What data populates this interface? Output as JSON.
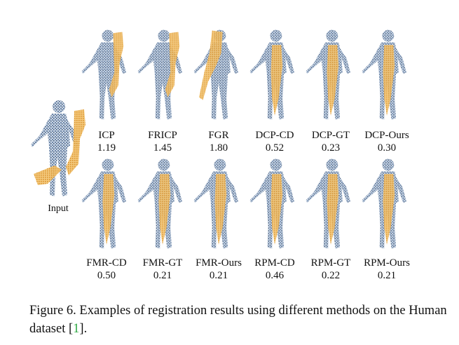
{
  "figure": {
    "input_label": "Input",
    "colors": {
      "source": "#e9a640",
      "target": "#6f87a8",
      "target_light": "#c9d6e6"
    },
    "rows": [
      [
        {
          "method": "ICP",
          "score": "1.19",
          "overlay": "offset-right"
        },
        {
          "method": "FRICP",
          "score": "1.45",
          "overlay": "offset-right"
        },
        {
          "method": "FGR",
          "score": "1.80",
          "overlay": "offset-left"
        },
        {
          "method": "DCP-CD",
          "score": "0.52",
          "overlay": "aligned"
        },
        {
          "method": "DCP-GT",
          "score": "0.23",
          "overlay": "aligned"
        },
        {
          "method": "DCP-Ours",
          "score": "0.30",
          "overlay": "aligned"
        }
      ],
      [
        {
          "method": "FMR-CD",
          "score": "0.50",
          "overlay": "aligned"
        },
        {
          "method": "FMR-GT",
          "score": "0.21",
          "overlay": "aligned"
        },
        {
          "method": "FMR-Ours",
          "score": "0.21",
          "overlay": "aligned"
        },
        {
          "method": "RPM-CD",
          "score": "0.46",
          "overlay": "aligned"
        },
        {
          "method": "RPM-GT",
          "score": "0.22",
          "overlay": "aligned"
        },
        {
          "method": "RPM-Ours",
          "score": "0.21",
          "overlay": "aligned"
        }
      ]
    ]
  },
  "caption": {
    "text": "Figure 6. Examples of registration results using different methods on the Human dataset [",
    "ref": "1",
    "end": "]."
  }
}
